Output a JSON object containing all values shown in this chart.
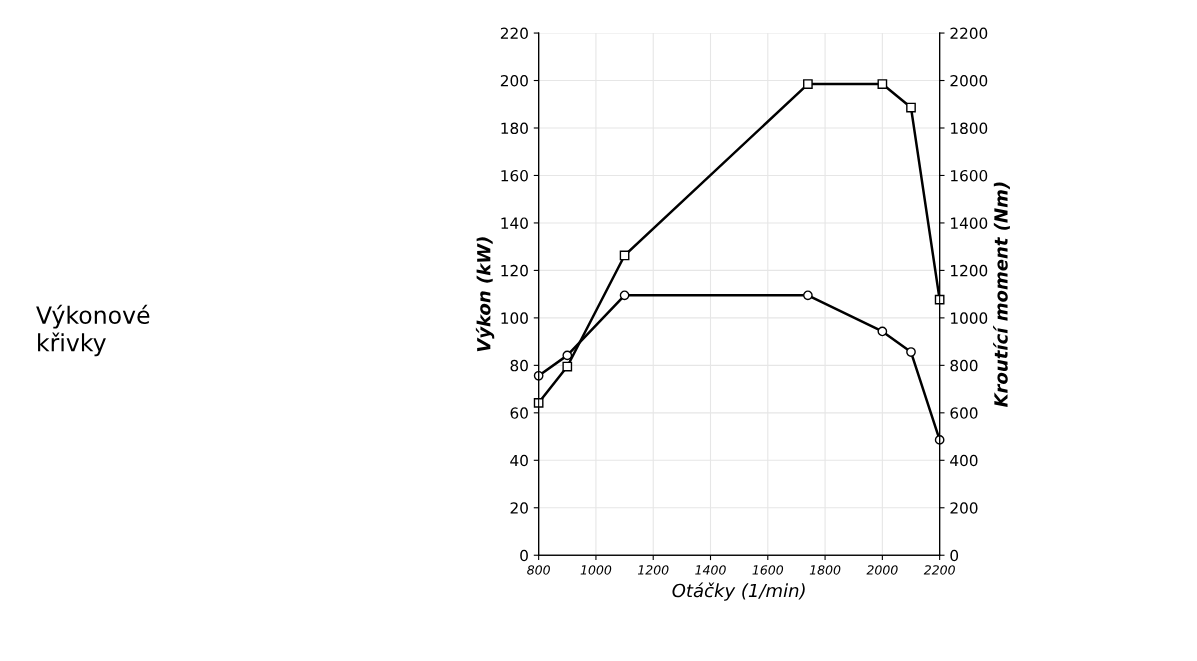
{
  "chart_data": {
    "type": "line",
    "xlabel": "Otáčky (1/min)",
    "ylabel": "Výkon (kW)",
    "y2label": "Kroutící moment (Nm)",
    "annotations": [
      "Výkonové\nkřivky"
    ],
    "xlim": [
      800,
      2200
    ],
    "xticks": [
      800,
      1000,
      1200,
      1400,
      1600,
      1800,
      2000,
      2200
    ],
    "ylim": [
      0,
      220
    ],
    "yticks": [
      0,
      20,
      40,
      60,
      80,
      100,
      120,
      140,
      160,
      180,
      200,
      220
    ],
    "y2lim": [
      0,
      2200
    ],
    "y2ticks": [
      0,
      200,
      400,
      600,
      800,
      1000,
      1200,
      1400,
      1600,
      1800,
      2000,
      2200
    ],
    "grid": true,
    "series": [
      {
        "color": "#000000",
        "marker": "circle",
        "x": [
          800,
          900,
          1100,
          1740,
          2000,
          2100,
          2200
        ],
        "values": [
          75.6,
          84.2,
          109.5,
          109.5,
          94.3,
          85.6,
          48.6
        ]
      },
      {
        "color": "#000000",
        "marker": "square",
        "axis": "y2",
        "x": [
          800,
          900,
          1100,
          1740,
          2000,
          2100,
          2200
        ],
        "values": [
          642,
          795,
          1263,
          1985,
          1985,
          1886,
          1077
        ]
      }
    ]
  }
}
